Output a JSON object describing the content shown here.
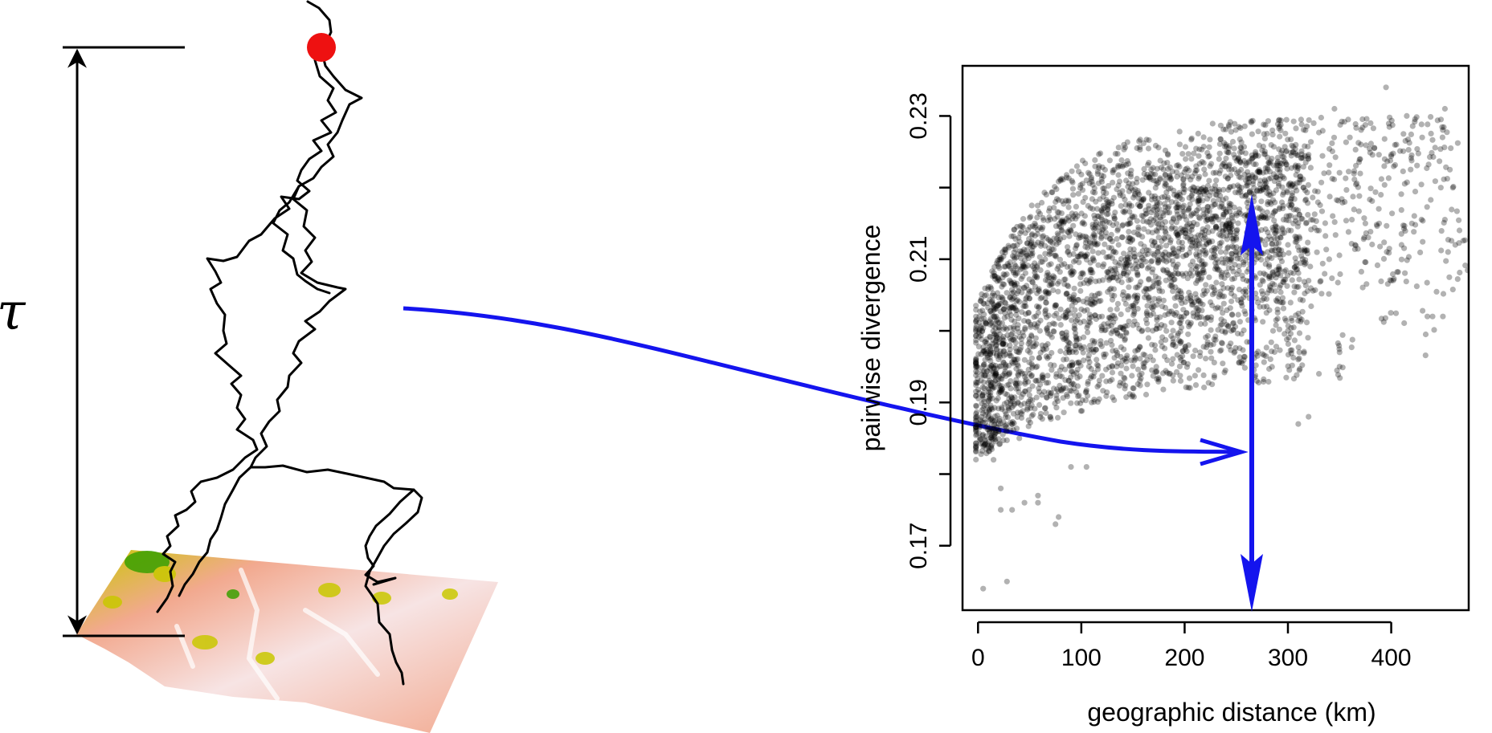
{
  "left_panel": {
    "time_label": "τ",
    "colors": {
      "lineage": "#000000",
      "ancestor_dot": "#ee1111",
      "map_low": "#f2a98f",
      "map_mid": "#f7e4e4",
      "map_high": "#c9c800",
      "map_peak": "#3aa000",
      "connector": "#1414ee"
    }
  },
  "chart_data": {
    "type": "scatter",
    "title": "",
    "xlabel": "geographic distance (km)",
    "ylabel": "pairwise divergence",
    "xlim": [
      -15,
      475
    ],
    "ylim": [
      0.161,
      0.237
    ],
    "xticks": [
      0,
      100,
      200,
      300,
      400
    ],
    "yticks": [
      0.17,
      0.18,
      0.19,
      0.2,
      0.21,
      0.22,
      0.23
    ],
    "ytick_labels": [
      "0.17",
      "",
      "0.19",
      "",
      "0.21",
      "",
      "0.23"
    ],
    "grid": false,
    "legend": "none",
    "point_color": "#000000",
    "point_opacity": 0.3,
    "series": [
      {
        "values": [
          [
            2,
            0.185
          ],
          [
            4,
            0.2
          ],
          [
            6,
            0.192
          ],
          [
            8,
            0.205
          ],
          [
            10,
            0.188
          ],
          [
            12,
            0.197
          ],
          [
            15,
            0.182
          ],
          [
            18,
            0.199
          ],
          [
            20,
            0.186
          ],
          [
            22,
            0.178
          ],
          [
            25,
            0.203
          ],
          [
            28,
            0.19
          ],
          [
            30,
            0.209
          ],
          [
            33,
            0.175
          ],
          [
            35,
            0.196
          ],
          [
            38,
            0.212
          ],
          [
            40,
            0.185
          ],
          [
            45,
            0.206
          ],
          [
            50,
            0.194
          ],
          [
            55,
            0.215
          ],
          [
            58,
            0.176
          ],
          [
            60,
            0.2
          ],
          [
            65,
            0.21
          ],
          [
            70,
            0.188
          ],
          [
            75,
            0.218
          ],
          [
            78,
            0.174
          ],
          [
            80,
            0.203
          ],
          [
            85,
            0.192
          ],
          [
            90,
            0.214
          ],
          [
            95,
            0.197
          ],
          [
            100,
            0.208
          ],
          [
            105,
            0.221
          ],
          [
            110,
            0.19
          ],
          [
            115,
            0.212
          ],
          [
            120,
            0.202
          ],
          [
            125,
            0.218
          ],
          [
            130,
            0.195
          ],
          [
            135,
            0.214
          ],
          [
            140,
            0.205
          ],
          [
            145,
            0.222
          ],
          [
            150,
            0.192
          ],
          [
            155,
            0.209
          ],
          [
            160,
            0.216
          ],
          [
            165,
            0.199
          ],
          [
            170,
            0.221
          ],
          [
            175,
            0.206
          ],
          [
            180,
            0.213
          ],
          [
            185,
            0.194
          ],
          [
            190,
            0.219
          ],
          [
            195,
            0.202
          ],
          [
            200,
            0.216
          ],
          [
            205,
            0.208
          ],
          [
            210,
            0.222
          ],
          [
            215,
            0.197
          ],
          [
            220,
            0.214
          ],
          [
            225,
            0.204
          ],
          [
            230,
            0.219
          ],
          [
            235,
            0.211
          ],
          [
            240,
            0.226
          ],
          [
            245,
            0.2
          ],
          [
            250,
            0.213
          ],
          [
            255,
            0.22
          ],
          [
            260,
            0.207
          ],
          [
            265,
            0.224
          ],
          [
            270,
            0.193
          ],
          [
            275,
            0.216
          ],
          [
            280,
            0.21
          ],
          [
            285,
            0.228
          ],
          [
            290,
            0.203
          ],
          [
            295,
            0.219
          ],
          [
            300,
            0.212
          ],
          [
            305,
            0.225
          ],
          [
            310,
            0.196
          ],
          [
            315,
            0.22
          ],
          [
            320,
            0.207
          ],
          [
            325,
            0.229
          ],
          [
            330,
            0.214
          ],
          [
            335,
            0.222
          ],
          [
            340,
            0.21
          ],
          [
            345,
            0.231
          ],
          [
            350,
            0.197
          ],
          [
            355,
            0.218
          ],
          [
            360,
            0.227
          ],
          [
            365,
            0.212
          ],
          [
            370,
            0.224
          ],
          [
            375,
            0.215
          ],
          [
            380,
            0.229
          ],
          [
            390,
            0.219
          ],
          [
            395,
            0.234
          ],
          [
            400,
            0.207
          ],
          [
            405,
            0.226
          ],
          [
            410,
            0.212
          ],
          [
            415,
            0.23
          ],
          [
            420,
            0.215
          ],
          [
            430,
            0.227
          ],
          [
            440,
            0.202
          ],
          [
            448,
            0.22
          ],
          [
            452,
            0.231
          ],
          [
            455,
            0.211
          ],
          [
            462,
            0.212
          ],
          [
            5,
            0.164
          ],
          [
            28,
            0.165
          ],
          [
            22,
            0.175
          ],
          [
            45,
            0.176
          ],
          [
            58,
            0.177
          ],
          [
            75,
            0.173
          ],
          [
            90,
            0.181
          ],
          [
            105,
            0.181
          ],
          [
            330,
            0.194
          ],
          [
            350,
            0.195
          ],
          [
            435,
            0.202
          ],
          [
            450,
            0.202
          ],
          [
            300,
            0.2
          ],
          [
            320,
            0.188
          ],
          [
            310,
            0.187
          ]
        ]
      }
    ]
  }
}
